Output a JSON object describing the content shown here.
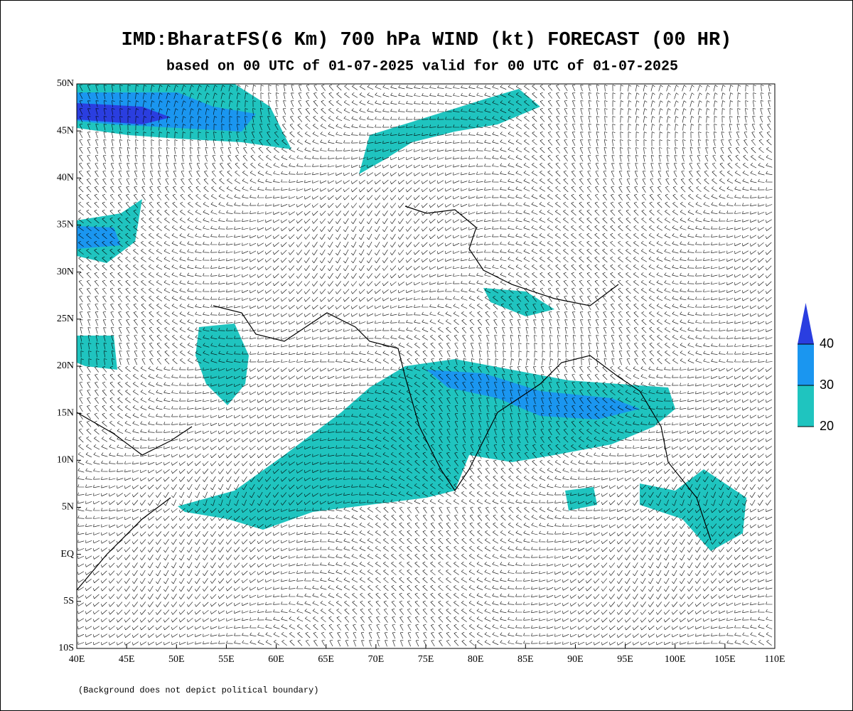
{
  "map": {
    "title": "IMD:BharatFS(6 Km) 700 hPa WIND (kt) FORECAST (00 HR)",
    "subtitle": "based on 00 UTC of 01-07-2025 valid for 00 UTC of 01-07-2025",
    "footnote": "(Background does not depict political boundary)",
    "lonlim": [
      40,
      110
    ],
    "latlim": [
      -10,
      50
    ],
    "lon_ticks": [
      {
        "value": 40,
        "label": "40E"
      },
      {
        "value": 45,
        "label": "45E"
      },
      {
        "value": 50,
        "label": "50E"
      },
      {
        "value": 55,
        "label": "55E"
      },
      {
        "value": 60,
        "label": "60E"
      },
      {
        "value": 65,
        "label": "65E"
      },
      {
        "value": 70,
        "label": "70E"
      },
      {
        "value": 75,
        "label": "75E"
      },
      {
        "value": 80,
        "label": "80E"
      },
      {
        "value": 85,
        "label": "85E"
      },
      {
        "value": 90,
        "label": "90E"
      },
      {
        "value": 95,
        "label": "95E"
      },
      {
        "value": 100,
        "label": "100E"
      },
      {
        "value": 105,
        "label": "105E"
      },
      {
        "value": 110,
        "label": "110E"
      }
    ],
    "lat_ticks": [
      {
        "value": 50,
        "label": "50N"
      },
      {
        "value": 45,
        "label": "45N"
      },
      {
        "value": 40,
        "label": "40N"
      },
      {
        "value": 35,
        "label": "35N"
      },
      {
        "value": 30,
        "label": "30N"
      },
      {
        "value": 25,
        "label": "25N"
      },
      {
        "value": 20,
        "label": "20N"
      },
      {
        "value": 15,
        "label": "15N"
      },
      {
        "value": 10,
        "label": "10N"
      },
      {
        "value": 5,
        "label": "5N"
      },
      {
        "value": 0,
        "label": "EQ"
      },
      {
        "value": -5,
        "label": "5S"
      },
      {
        "value": -10,
        "label": "10S"
      }
    ],
    "colorbar": {
      "levels": [
        20,
        30,
        40
      ],
      "colors": [
        "#1fc4bf",
        "#1a96f0",
        "#2a3ee0"
      ]
    }
  }
}
